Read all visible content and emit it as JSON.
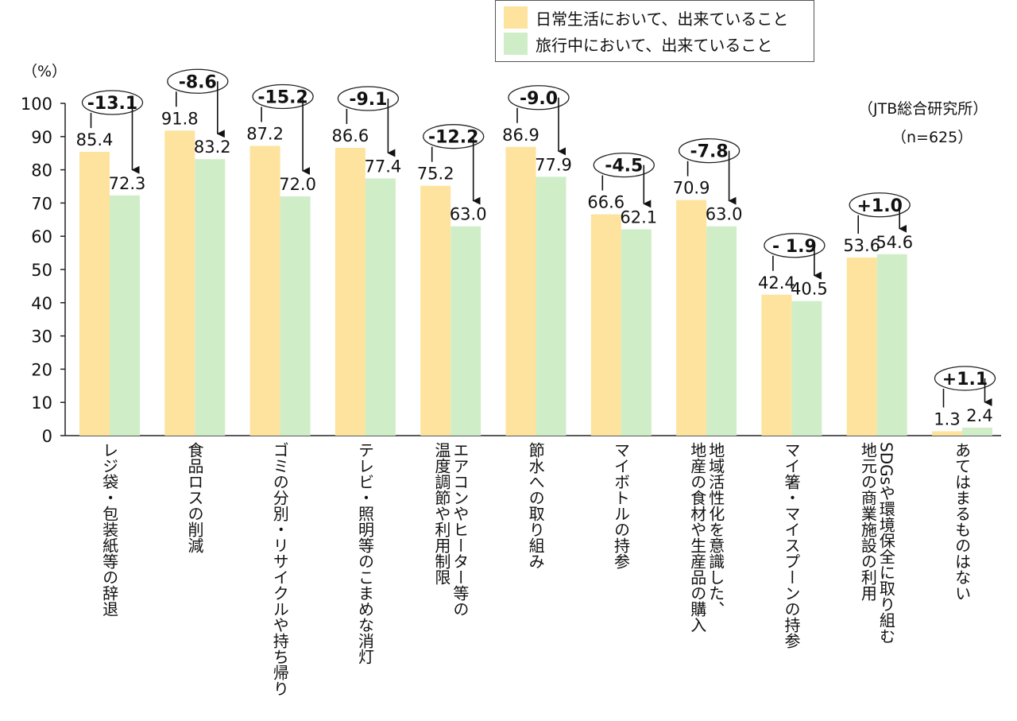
{
  "legend": {
    "daily": "日常生活において、出来ていること",
    "travel": "旅行中において、出来ていること"
  },
  "notes": {
    "source": "（JTB総合研究所）",
    "sample": "（n=625）",
    "unit": "（%）"
  },
  "colors": {
    "daily": "#fde39d",
    "travel": "#cfeec7",
    "axis": "#222222",
    "arrow": "#111111"
  },
  "chart_data": {
    "type": "bar",
    "ylim": [
      0,
      100
    ],
    "yticks": [
      0,
      10,
      20,
      30,
      40,
      50,
      60,
      70,
      80,
      90,
      100
    ],
    "ylabel": "（%）",
    "categories": [
      "レジ袋・包装紙等の辞退",
      "食品ロスの削減",
      "ゴミの分別・リサイクルや持ち帰り",
      "テレビ・照明等のこまめな消灯",
      "エアコンやヒーター等の温度調節や利用制限",
      "節水への取り組み",
      "マイボトルの持参",
      "地域活性化を意識した、地産の食材や生産品の購入",
      "マイ箸・マイスプーンの持参",
      "SDGsや環境保全に取り組む地元の商業施設の利用",
      "あてはまるものはない"
    ],
    "category_lines": [
      [
        "レジ袋・包装紙等の辞退"
      ],
      [
        "食品ロスの削減"
      ],
      [
        "ゴミの分別・リサイクルや持ち帰り"
      ],
      [
        "テレビ・照明等のこまめな消灯"
      ],
      [
        "エアコンやヒーター等の",
        "温度調節や利用制限"
      ],
      [
        "節水への取り組み"
      ],
      [
        "マイボトルの持参"
      ],
      [
        "地域活性化を意識した、",
        "地産の食材や生産品の購入"
      ],
      [
        "マイ箸・マイスプーンの持参"
      ],
      [
        "SDGsや環境保全に取り組む",
        "地元の商業施設の利用"
      ],
      [
        "あてはまるものはない"
      ]
    ],
    "series": [
      {
        "name": "日常生活において、出来ていること",
        "values": [
          85.4,
          91.8,
          87.2,
          86.6,
          75.2,
          86.9,
          66.6,
          70.9,
          42.4,
          53.6,
          1.3
        ]
      },
      {
        "name": "旅行中において、出来ていること",
        "values": [
          72.3,
          83.2,
          72.0,
          77.4,
          63.0,
          77.9,
          62.1,
          63.0,
          40.5,
          54.6,
          2.4
        ]
      }
    ],
    "value_labels": {
      "daily": [
        "85.4",
        "91.8",
        "87.2",
        "86.6",
        "75.2",
        "86.9",
        "66.6",
        "70.9",
        "42.4",
        "53.6",
        "1.3"
      ],
      "travel": [
        "72.3",
        "83.2",
        "72.0",
        "77.4",
        "63.0",
        "77.9",
        "62.1",
        "63.0",
        "40.5",
        "54.6",
        "2.4"
      ]
    },
    "differences": [
      "-13.1",
      "-8.6",
      "-15.2",
      "-9.1",
      "-12.2",
      "-9.0",
      "-4.5",
      "-7.8",
      "- 1.9",
      "+1.0",
      "+1.1"
    ]
  }
}
